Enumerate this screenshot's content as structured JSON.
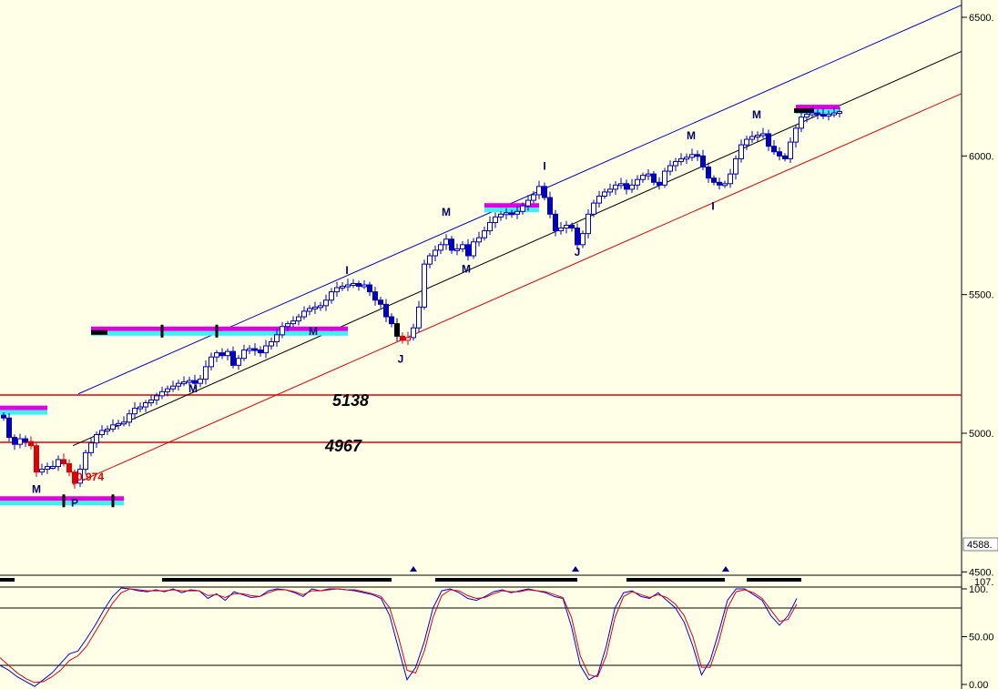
{
  "chart_data": [
    {
      "type": "candlestick",
      "panel": "price",
      "y_axis": {
        "ticks": [
          {
            "value": 6500,
            "label": "6500."
          },
          {
            "value": 6000,
            "label": "6000."
          },
          {
            "value": 5500,
            "label": "5500."
          },
          {
            "value": 5000,
            "label": "5000."
          },
          {
            "value": 4500,
            "label": "4500."
          }
        ],
        "current_label": "4588.",
        "ylim": [
          4460,
          6560
        ]
      },
      "horizontal_levels": [
        {
          "value": 5138,
          "label": "5138",
          "color": "#e00000"
        },
        {
          "value": 4967,
          "label": "4967",
          "color": "#e00000"
        }
      ],
      "channel": {
        "upper": {
          "color": "#0000c0",
          "from": [
            86,
            5142
          ],
          "to": [
            1056,
            6544
          ]
        },
        "middle": {
          "color": "#000000",
          "from": [
            80,
            4955
          ],
          "to": [
            1056,
            6377
          ]
        },
        "lower": {
          "color": "#e00000",
          "from": [
            80,
            4815
          ],
          "to": [
            1056,
            6225
          ]
        }
      },
      "wave_labels": [
        {
          "text": "M",
          "bar": 40,
          "price": 4785
        },
        {
          "text": "P",
          "bar": 82,
          "price": 4735
        },
        {
          "text": "0.974",
          "bar": 84,
          "price": 4830,
          "style": "red"
        },
        {
          "text": "M",
          "bar": 212,
          "price": 5148
        },
        {
          "text": "M",
          "bar": 344,
          "price": 5355
        },
        {
          "text": "I",
          "bar": 381,
          "price": 5575
        },
        {
          "text": "J",
          "bar": 440,
          "price": 5255
        },
        {
          "text": "M",
          "bar": 490,
          "price": 5785
        },
        {
          "text": "M",
          "bar": 512,
          "price": 5580
        },
        {
          "text": "I",
          "bar": 598,
          "price": 5950
        },
        {
          "text": "J",
          "bar": 634,
          "price": 5640
        },
        {
          "text": "M",
          "bar": 759,
          "price": 6060
        },
        {
          "text": "I",
          "bar": 783,
          "price": 5805
        },
        {
          "text": "M",
          "bar": 831,
          "price": 6135
        }
      ],
      "bands": [
        {
          "x1": 0,
          "x2": 52,
          "price": 5080
        },
        {
          "x1": 0,
          "x2": 136,
          "price": 4753
        },
        {
          "x1": 100,
          "x2": 382,
          "price": 5365
        },
        {
          "x1": 532,
          "x2": 592,
          "price": 5810
        },
        {
          "x1": 874,
          "x2": 922,
          "price": 6165
        }
      ],
      "candles_seed": [
        [
          4,
          5055
        ],
        [
          10,
          4985
        ],
        [
          16,
          4960
        ],
        [
          22,
          4980
        ],
        [
          28,
          4970
        ],
        [
          34,
          4955
        ],
        [
          40,
          4860
        ],
        [
          46,
          4870
        ],
        [
          52,
          4880
        ],
        [
          58,
          4880
        ],
        [
          64,
          4905
        ],
        [
          70,
          4890
        ],
        [
          76,
          4860
        ],
        [
          82,
          4820
        ],
        [
          88,
          4870
        ],
        [
          94,
          4930
        ],
        [
          100,
          4965
        ],
        [
          106,
          4995
        ],
        [
          112,
          5010
        ],
        [
          118,
          5015
        ],
        [
          124,
          5030
        ],
        [
          130,
          5035
        ],
        [
          136,
          5040
        ],
        [
          142,
          5070
        ],
        [
          148,
          5090
        ],
        [
          154,
          5095
        ],
        [
          160,
          5110
        ],
        [
          166,
          5120
        ],
        [
          172,
          5135
        ],
        [
          178,
          5150
        ],
        [
          184,
          5160
        ],
        [
          190,
          5170
        ],
        [
          196,
          5180
        ],
        [
          202,
          5185
        ],
        [
          208,
          5190
        ],
        [
          214,
          5180
        ],
        [
          220,
          5195
        ],
        [
          226,
          5240
        ],
        [
          232,
          5275
        ],
        [
          238,
          5290
        ],
        [
          244,
          5280
        ],
        [
          250,
          5295
        ],
        [
          256,
          5245
        ],
        [
          262,
          5270
        ],
        [
          268,
          5300
        ],
        [
          274,
          5305
        ],
        [
          280,
          5300
        ],
        [
          286,
          5290
        ],
        [
          292,
          5315
        ],
        [
          298,
          5330
        ],
        [
          304,
          5355
        ],
        [
          310,
          5385
        ],
        [
          316,
          5395
        ],
        [
          322,
          5405
        ],
        [
          328,
          5420
        ],
        [
          334,
          5440
        ],
        [
          340,
          5450
        ],
        [
          346,
          5455
        ],
        [
          352,
          5460
        ],
        [
          358,
          5480
        ],
        [
          364,
          5510
        ],
        [
          370,
          5525
        ],
        [
          376,
          5530
        ],
        [
          382,
          5535
        ],
        [
          388,
          5540
        ],
        [
          394,
          5530
        ],
        [
          400,
          5535
        ],
        [
          406,
          5510
        ],
        [
          412,
          5480
        ],
        [
          418,
          5465
        ],
        [
          424,
          5420
        ],
        [
          430,
          5395
        ],
        [
          436,
          5350
        ],
        [
          442,
          5335
        ],
        [
          448,
          5345
        ],
        [
          454,
          5380
        ],
        [
          460,
          5455
        ],
        [
          466,
          5610
        ],
        [
          472,
          5640
        ],
        [
          478,
          5660
        ],
        [
          484,
          5680
        ],
        [
          490,
          5700
        ],
        [
          496,
          5660
        ],
        [
          502,
          5665
        ],
        [
          508,
          5680
        ],
        [
          514,
          5640
        ],
        [
          520,
          5690
        ],
        [
          526,
          5705
        ],
        [
          532,
          5730
        ],
        [
          538,
          5760
        ],
        [
          544,
          5780
        ],
        [
          550,
          5790
        ],
        [
          556,
          5795
        ],
        [
          562,
          5790
        ],
        [
          568,
          5800
        ],
        [
          574,
          5820
        ],
        [
          580,
          5840
        ],
        [
          586,
          5860
        ],
        [
          592,
          5890
        ],
        [
          598,
          5850
        ],
        [
          604,
          5790
        ],
        [
          610,
          5730
        ],
        [
          616,
          5740
        ],
        [
          622,
          5750
        ],
        [
          628,
          5740
        ],
        [
          634,
          5680
        ],
        [
          640,
          5720
        ],
        [
          646,
          5790
        ],
        [
          652,
          5830
        ],
        [
          658,
          5855
        ],
        [
          664,
          5870
        ],
        [
          670,
          5880
        ],
        [
          676,
          5895
        ],
        [
          682,
          5900
        ],
        [
          688,
          5880
        ],
        [
          694,
          5895
        ],
        [
          700,
          5915
        ],
        [
          706,
          5930
        ],
        [
          712,
          5935
        ],
        [
          718,
          5905
        ],
        [
          724,
          5895
        ],
        [
          730,
          5945
        ],
        [
          736,
          5965
        ],
        [
          742,
          5980
        ],
        [
          748,
          5990
        ],
        [
          754,
          5995
        ],
        [
          760,
          6005
        ],
        [
          766,
          6000
        ],
        [
          772,
          5960
        ],
        [
          778,
          5920
        ],
        [
          784,
          5905
        ],
        [
          790,
          5895
        ],
        [
          796,
          5900
        ],
        [
          802,
          5935
        ],
        [
          808,
          5990
        ],
        [
          814,
          6040
        ],
        [
          820,
          6060
        ],
        [
          826,
          6070
        ],
        [
          832,
          6075
        ],
        [
          838,
          6080
        ],
        [
          844,
          6035
        ],
        [
          850,
          6015
        ],
        [
          856,
          6000
        ],
        [
          862,
          5990
        ],
        [
          868,
          6050
        ],
        [
          874,
          6100
        ],
        [
          880,
          6140
        ],
        [
          886,
          6150
        ],
        [
          892,
          6155
        ],
        [
          898,
          6150
        ],
        [
          904,
          6145
        ],
        [
          910,
          6150
        ],
        [
          916,
          6155
        ],
        [
          922,
          6160
        ]
      ]
    },
    {
      "type": "line",
      "panel": "oscillator",
      "y_axis": {
        "ticks": [
          {
            "value": 100,
            "label": "100."
          },
          {
            "value": 50,
            "label": "50.00"
          },
          {
            "value": 0,
            "label": "0.00"
          }
        ],
        "top_label": "107.",
        "ylim": [
          0,
          110
        ]
      },
      "reference_lines": [
        80,
        20
      ],
      "series": [
        {
          "color": "#0000e0",
          "values": [
            20,
            15,
            8,
            3,
            -2,
            5,
            12,
            22,
            32,
            35,
            48,
            62,
            78,
            92,
            101,
            100,
            98,
            97,
            99,
            97,
            100,
            96,
            99,
            98,
            90,
            95,
            88,
            97,
            94,
            91,
            92,
            98,
            100,
            99,
            96,
            92,
            100,
            98,
            100,
            100,
            99,
            98,
            96,
            94,
            90,
            72,
            38,
            5,
            18,
            45,
            80,
            98,
            100,
            96,
            90,
            88,
            92,
            97,
            99,
            96,
            98,
            100,
            98,
            96,
            92,
            90,
            60,
            20,
            5,
            10,
            40,
            80,
            96,
            98,
            92,
            90,
            96,
            88,
            80,
            65,
            40,
            10,
            25,
            55,
            88,
            100,
            100,
            94,
            88,
            72,
            62,
            72,
            90
          ]
        },
        {
          "color": "#e00000",
          "values": [
            28,
            20,
            12,
            6,
            2,
            3,
            8,
            15,
            25,
            30,
            40,
            55,
            70,
            85,
            96,
            100,
            99,
            98,
            98,
            98,
            99,
            98,
            98,
            98,
            93,
            94,
            91,
            95,
            95,
            93,
            92,
            96,
            99,
            99,
            97,
            94,
            98,
            98,
            99,
            100,
            99,
            99,
            97,
            95,
            92,
            80,
            50,
            15,
            12,
            35,
            70,
            93,
            99,
            98,
            93,
            90,
            91,
            95,
            98,
            97,
            97,
            99,
            98,
            97,
            94,
            91,
            70,
            30,
            10,
            8,
            30,
            70,
            92,
            97,
            94,
            91,
            94,
            91,
            84,
            72,
            50,
            18,
            18,
            45,
            80,
            97,
            99,
            96,
            90,
            78,
            66,
            68,
            84
          ]
        }
      ],
      "markers": [
        {
          "x1": 0,
          "x2": 16
        },
        {
          "x1": 178,
          "x2": 430
        },
        {
          "x1": 478,
          "x2": 634
        },
        {
          "x1": 688,
          "x2": 796
        },
        {
          "x1": 820,
          "x2": 880
        }
      ],
      "triangles": [
        454,
        632,
        797
      ]
    }
  ],
  "colors": {
    "background": "#ffffe8",
    "up_candle": "#0000c0",
    "down_candle_blue": "#0000c0",
    "down_candle_red": "#e00000",
    "band_magenta": "#e000e0",
    "band_cyan": "#40f0f0"
  }
}
